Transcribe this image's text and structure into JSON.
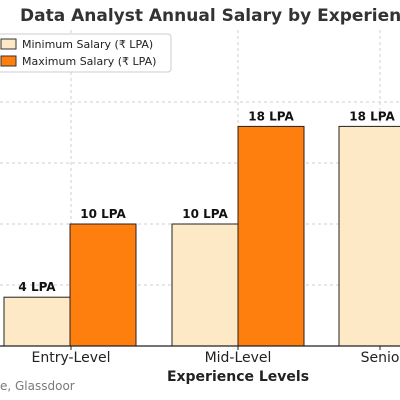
{
  "chart_data": {
    "type": "bar",
    "title": "Data Analyst Annual Salary by Experience",
    "xlabel": "Experience Levels",
    "ylabel": "",
    "categories": [
      "Entry-Level",
      "Mid-Level",
      "Senio"
    ],
    "series": [
      {
        "name": "Minimum Salary (₹ LPA)",
        "values": [
          4,
          10,
          18
        ],
        "labels": [
          "4 LPA",
          "10 LPA",
          "18 LPA"
        ],
        "color": "#fde9c6"
      },
      {
        "name": "Maximum Salary (₹ LPA)",
        "values": [
          10,
          18,
          null
        ],
        "labels": [
          "10 LPA",
          "18 LPA",
          null
        ],
        "color": "#ff7f0e"
      }
    ],
    "ylim": [
      0,
      22
    ],
    "grid": true,
    "legend_position": "top-left",
    "source_text": "e, Glassdoor"
  }
}
